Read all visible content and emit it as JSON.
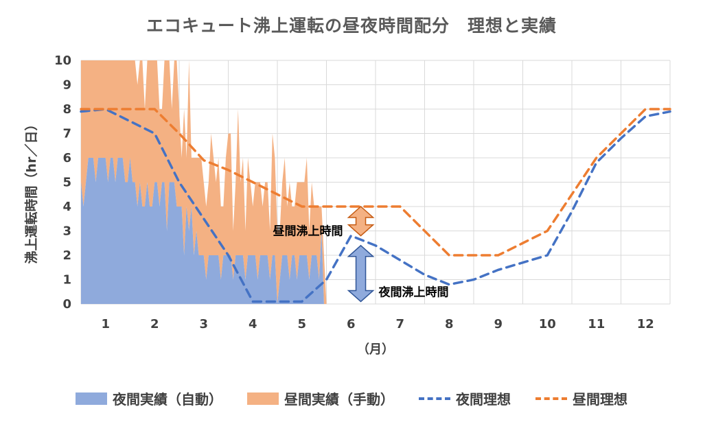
{
  "chart_data": {
    "type": "area",
    "title": "エコキュート沸上運転の昼夜時間配分　理想と実績",
    "ylabel": "沸上運転時間（hr／日）",
    "xlabel": "（月）",
    "ylim": [
      0,
      10
    ],
    "yticks": [
      "0",
      "1",
      "2",
      "3",
      "4",
      "5",
      "6",
      "7",
      "8",
      "9",
      "10"
    ],
    "categories": [
      "1",
      "2",
      "3",
      "4",
      "5",
      "6",
      "7",
      "8",
      "9",
      "10",
      "11",
      "12"
    ],
    "xlim": [
      0.5,
      12.5
    ],
    "grid": true,
    "legend": "bottom",
    "colors": {
      "night_actual": "#8FAADC",
      "day_actual": "#F4B183",
      "night_ideal": "#4472C4",
      "day_ideal": "#ED7D31"
    },
    "series": [
      {
        "name": "夜間実績（自動）",
        "kind": "area",
        "x": [
          0.5,
          0.55,
          0.6,
          0.65,
          0.7,
          0.75,
          0.8,
          0.85,
          0.9,
          0.95,
          1.0,
          1.05,
          1.1,
          1.15,
          1.2,
          1.25,
          1.3,
          1.35,
          1.4,
          1.45,
          1.5,
          1.55,
          1.6,
          1.65,
          1.7,
          1.75,
          1.8,
          1.85,
          1.9,
          1.95,
          2.0,
          2.05,
          2.1,
          2.15,
          2.2,
          2.25,
          2.3,
          2.35,
          2.4,
          2.45,
          2.5,
          2.55,
          2.6,
          2.65,
          2.7,
          2.75,
          2.8,
          2.85,
          2.9,
          2.95,
          3.0,
          3.05,
          3.1,
          3.15,
          3.2,
          3.25,
          3.3,
          3.35,
          3.4,
          3.45,
          3.5,
          3.55,
          3.6,
          3.65,
          3.7,
          3.75,
          3.8,
          3.85,
          3.9,
          3.95,
          4.0,
          4.05,
          4.1,
          4.15,
          4.2,
          4.25,
          4.3,
          4.35,
          4.4,
          4.45,
          4.5,
          4.55,
          4.6,
          4.65,
          4.7,
          4.75,
          4.8,
          4.85,
          4.9,
          4.95,
          5.0,
          5.05,
          5.1,
          5.15,
          5.2,
          5.25,
          5.3,
          5.35,
          5.4,
          5.45,
          5.5
        ],
        "values": [
          5,
          4,
          5,
          6,
          6,
          6,
          5,
          6,
          6,
          6,
          6,
          5,
          6,
          6,
          5,
          6,
          6,
          6,
          5,
          5,
          6,
          5,
          5,
          4,
          5,
          4,
          4,
          5,
          4,
          4,
          5,
          5,
          4,
          5,
          5,
          3,
          5,
          5,
          5,
          4,
          4,
          4,
          2,
          4,
          3,
          4,
          2,
          3,
          2,
          2,
          2,
          1,
          2,
          2,
          2,
          2,
          2,
          1,
          2,
          2,
          2,
          2,
          1,
          2,
          2,
          2,
          2,
          1,
          2,
          2,
          2,
          2,
          1,
          2,
          2,
          2,
          2,
          1,
          2,
          2,
          0,
          1,
          2,
          2,
          2,
          1,
          2,
          2,
          1,
          2,
          2,
          2,
          2,
          1,
          2,
          2,
          2,
          1,
          3,
          0,
          0
        ]
      },
      {
        "name": "昼間実績（手動）",
        "kind": "area",
        "x": [
          0.5,
          0.55,
          0.6,
          0.65,
          0.7,
          0.75,
          0.8,
          0.85,
          0.9,
          0.95,
          1.0,
          1.05,
          1.1,
          1.15,
          1.2,
          1.25,
          1.3,
          1.35,
          1.4,
          1.45,
          1.5,
          1.55,
          1.6,
          1.65,
          1.7,
          1.75,
          1.8,
          1.85,
          1.9,
          1.95,
          2.0,
          2.05,
          2.1,
          2.15,
          2.2,
          2.25,
          2.3,
          2.35,
          2.4,
          2.45,
          2.5,
          2.55,
          2.6,
          2.65,
          2.7,
          2.75,
          2.8,
          2.85,
          2.9,
          2.95,
          3.0,
          3.05,
          3.1,
          3.15,
          3.2,
          3.25,
          3.3,
          3.35,
          3.4,
          3.45,
          3.5,
          3.55,
          3.6,
          3.65,
          3.7,
          3.75,
          3.8,
          3.85,
          3.9,
          3.95,
          4.0,
          4.05,
          4.1,
          4.15,
          4.2,
          4.25,
          4.3,
          4.35,
          4.4,
          4.45,
          4.5,
          4.55,
          4.6,
          4.65,
          4.7,
          4.75,
          4.8,
          4.85,
          4.9,
          4.95,
          5.0,
          5.05,
          5.1,
          5.15,
          5.2,
          5.25,
          5.3,
          5.35,
          5.4,
          5.45,
          5.5
        ],
        "values": [
          6,
          8,
          6,
          8,
          6,
          7,
          6,
          8,
          6,
          5,
          7,
          7,
          5,
          8,
          7,
          6,
          5,
          8,
          7,
          6,
          5,
          6,
          7,
          5,
          6,
          7,
          4,
          5,
          6,
          7,
          5,
          6,
          4,
          3,
          8,
          7,
          5,
          3,
          6,
          7,
          4,
          2,
          6,
          2,
          9,
          2,
          4,
          3,
          4,
          4,
          3,
          3,
          3,
          5,
          4,
          3,
          4,
          3,
          2,
          4,
          5,
          5,
          2,
          3,
          6,
          3,
          4,
          2,
          4,
          3,
          2,
          3,
          4,
          3,
          2,
          3,
          3,
          2,
          5,
          4,
          3,
          2,
          3,
          4,
          2,
          4,
          2,
          2,
          4,
          3,
          3,
          3,
          4,
          2,
          3,
          2,
          2,
          3,
          1,
          2,
          0
        ]
      },
      {
        "name": "夜間理想",
        "kind": "line",
        "dash": true,
        "x": [
          0.5,
          1,
          1.5,
          2,
          2.5,
          3,
          3.5,
          4,
          4.5,
          5,
          5.5,
          6,
          6.5,
          7,
          7.5,
          8,
          8.5,
          9,
          9.5,
          10,
          10.5,
          11,
          11.5,
          12,
          12.5
        ],
        "values": [
          7.9,
          8.0,
          7.5,
          7.0,
          5.0,
          3.5,
          2.0,
          0.1,
          0.1,
          0.1,
          1.0,
          2.8,
          2.4,
          1.8,
          1.2,
          0.8,
          1.0,
          1.4,
          1.7,
          2.0,
          3.8,
          5.8,
          6.8,
          7.7,
          7.9
        ]
      },
      {
        "name": "昼間理想",
        "kind": "line",
        "dash": true,
        "x": [
          0.5,
          1,
          1.5,
          2,
          2.5,
          3,
          3.5,
          4,
          4.5,
          5,
          5.5,
          6,
          6.5,
          7,
          7.5,
          8,
          8.5,
          9,
          9.5,
          10,
          10.5,
          11,
          11.5,
          12,
          12.5
        ],
        "values": [
          8.0,
          8.0,
          8.0,
          8.0,
          7.0,
          5.9,
          5.5,
          5.0,
          4.5,
          4.0,
          4.0,
          4.0,
          4.0,
          4.0,
          3.0,
          2.0,
          2.0,
          2.0,
          2.5,
          3.0,
          4.5,
          6.0,
          7.0,
          8.0,
          8.0
        ]
      }
    ],
    "annotations": [
      {
        "text": "昼間沸上時間",
        "x": 6.2,
        "y_from": 2.8,
        "y_to": 4.0
      },
      {
        "text": "夜間沸上時間",
        "x": 6.2,
        "y_from": 0.1,
        "y_to": 2.4
      }
    ]
  }
}
